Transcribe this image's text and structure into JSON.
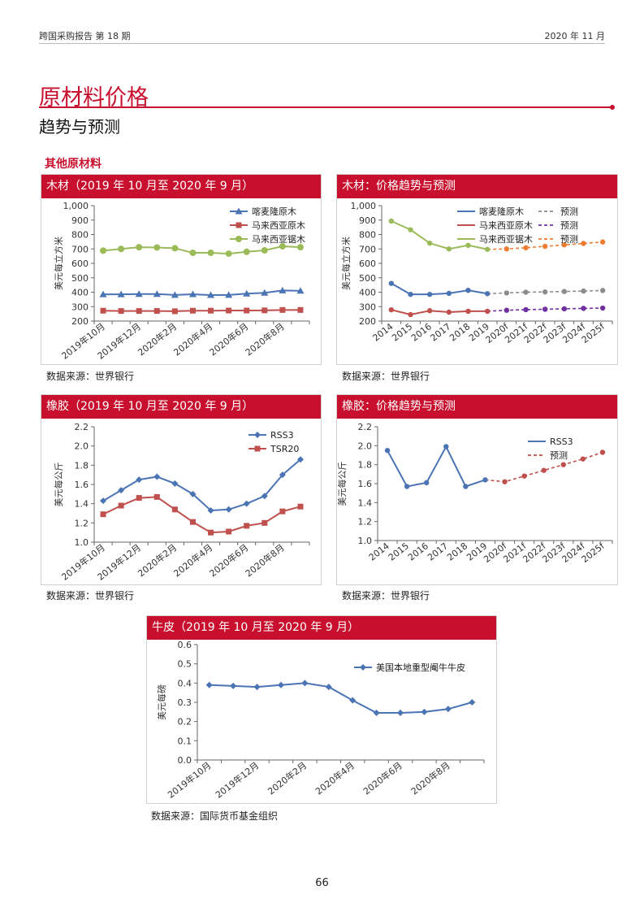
{
  "header": {
    "left": "跨国采购报告 第 18 期",
    "right": "2020 年 11 月"
  },
  "page": {
    "title": "原材料价格",
    "subtitle": "趋势与预测",
    "section": "其他原材料",
    "page_number": "66"
  },
  "colors": {
    "brand_red": "#c8102e",
    "blue": "#4a74b4",
    "red": "#c0504d",
    "green": "#9bbb59",
    "gray": "#8c8c8c",
    "purple": "#7030a0",
    "orange": "#ed7d31"
  },
  "charts": {
    "wood_hist": {
      "head": "木材（2019 年 10 月至 2020 年 9 月）",
      "source": "数据来源：世界银行"
    },
    "wood_fc": {
      "head": "木材：价格趋势与预测",
      "source": "数据来源：世界银行"
    },
    "rubber_hist": {
      "head": "橡胶（2019 年 10 月至 2020 年 9 月）",
      "source": "数据来源：世界银行"
    },
    "rubber_fc": {
      "head": "橡胶：价格趋势与预测",
      "source": "数据来源：世界银行"
    },
    "hide_hist": {
      "head": "牛皮（2019 年 10 月至 2020 年 9 月）",
      "source": "数据来源：国际货币基金组织"
    }
  },
  "chart_data": [
    {
      "id": "wood_hist",
      "type": "line",
      "ylabel": "美元每立方米",
      "ylim": [
        200,
        1000
      ],
      "yticks": [
        "200",
        "300",
        "400",
        "500",
        "600",
        "700",
        "800",
        "900",
        "1,000"
      ],
      "x": [
        "2019年10月",
        "2019年11月",
        "2019年12月",
        "2020年1月",
        "2020年2月",
        "2020年3月",
        "2020年4月",
        "2020年5月",
        "2020年6月",
        "2020年7月",
        "2020年8月",
        "2020年9月"
      ],
      "xtick_labels": [
        "2019年10月",
        "2019年12月",
        "2020年2月",
        "2020年4月",
        "2020年6月",
        "2020年8月"
      ],
      "legend": "top-right",
      "series": [
        {
          "name": "喀麦隆原木",
          "color": "#4a74b4",
          "marker": "triangle",
          "values": [
            385,
            385,
            387,
            387,
            381,
            386,
            380,
            381,
            390,
            396,
            412,
            410
          ]
        },
        {
          "name": "马来西亚原木",
          "color": "#c0504d",
          "marker": "square",
          "values": [
            272,
            270,
            270,
            270,
            268,
            272,
            272,
            273,
            273,
            274,
            277,
            277
          ]
        },
        {
          "name": "马来西亚锯木",
          "color": "#9bbb59",
          "marker": "circle",
          "values": [
            688,
            700,
            712,
            710,
            705,
            673,
            673,
            667,
            680,
            690,
            718,
            712
          ]
        }
      ]
    },
    {
      "id": "wood_fc",
      "type": "line",
      "ylabel": "美元每立方米",
      "ylim": [
        200,
        1000
      ],
      "yticks": [
        "200",
        "300",
        "400",
        "500",
        "600",
        "700",
        "800",
        "900",
        "1,000"
      ],
      "x": [
        "2014",
        "2015",
        "2016",
        "2017",
        "2018",
        "2019",
        "2020f",
        "2021f",
        "2022f",
        "2023f",
        "2024f",
        "2025f"
      ],
      "legend": "top",
      "legend_dash_label": "预测",
      "series": [
        {
          "name": "喀麦隆原木",
          "color": "#4a74b4",
          "forecast_color": "#8c8c8c",
          "values": [
            461,
            385,
            385,
            392,
            413,
            390,
            395,
            400,
            402,
            405,
            408,
            412
          ]
        },
        {
          "name": "马来西亚原木",
          "color": "#c0504d",
          "forecast_color": "#7030a0",
          "values": [
            278,
            245,
            272,
            262,
            268,
            268,
            275,
            279,
            282,
            285,
            288,
            290
          ]
        },
        {
          "name": "马来西亚锯木",
          "color": "#9bbb59",
          "forecast_color": "#ed7d31",
          "values": [
            893,
            833,
            740,
            700,
            725,
            697,
            700,
            708,
            718,
            728,
            738,
            748
          ]
        }
      ]
    },
    {
      "id": "rubber_hist",
      "type": "line",
      "ylabel": "美元每公斤",
      "ylim": [
        1.0,
        2.2
      ],
      "yticks": [
        "1.0",
        "1.2",
        "1.4",
        "1.6",
        "1.8",
        "2.0",
        "2.2"
      ],
      "x": [
        "2019年10月",
        "2019年11月",
        "2019年12月",
        "2020年1月",
        "2020年2月",
        "2020年3月",
        "2020年4月",
        "2020年5月",
        "2020年6月",
        "2020年7月",
        "2020年8月",
        "2020年9月"
      ],
      "xtick_labels": [
        "2019年10月",
        "2019年12月",
        "2020年2月",
        "2020年4月",
        "2020年6月",
        "2020年8月"
      ],
      "legend": "top-right",
      "series": [
        {
          "name": "RSS3",
          "color": "#4a74b4",
          "marker": "diamond",
          "values": [
            1.43,
            1.54,
            1.65,
            1.68,
            1.61,
            1.5,
            1.33,
            1.34,
            1.4,
            1.48,
            1.7,
            1.86
          ]
        },
        {
          "name": "TSR20",
          "color": "#c0504d",
          "marker": "square",
          "values": [
            1.29,
            1.38,
            1.46,
            1.47,
            1.34,
            1.21,
            1.1,
            1.11,
            1.17,
            1.2,
            1.32,
            1.37
          ]
        }
      ]
    },
    {
      "id": "rubber_fc",
      "type": "line",
      "ylabel": "美元每公斤",
      "ylim": [
        1.0,
        2.2
      ],
      "yticks": [
        "1.0",
        "1.2",
        "1.4",
        "1.6",
        "1.8",
        "2.0",
        "2.2"
      ],
      "x": [
        "2014",
        "2015",
        "2016",
        "2017",
        "2018",
        "2019",
        "2020f",
        "2021f",
        "2022f",
        "2023f",
        "2024f",
        "2025f"
      ],
      "legend": "top-right",
      "legend_dash_label": "预测",
      "series": [
        {
          "name": "RSS3",
          "color": "#4a74b4",
          "forecast_color": "#c0504d",
          "values": [
            1.95,
            1.57,
            1.61,
            1.99,
            1.57,
            1.64,
            1.62,
            1.68,
            1.74,
            1.8,
            1.86,
            1.93
          ]
        }
      ]
    },
    {
      "id": "hide_hist",
      "type": "line",
      "ylabel": "美元每磅",
      "ylim": [
        0.0,
        0.6
      ],
      "yticks": [
        "0.0",
        "0.1",
        "0.2",
        "0.3",
        "0.4",
        "0.5",
        "0.6"
      ],
      "x": [
        "2019年10月",
        "2019年11月",
        "2019年12月",
        "2020年1月",
        "2020年2月",
        "2020年3月",
        "2020年4月",
        "2020年5月",
        "2020年6月",
        "2020年7月",
        "2020年8月",
        "2020年9月"
      ],
      "xtick_labels": [
        "2019年10月",
        "2019年12月",
        "2020年2月",
        "2020年4月",
        "2020年6月",
        "2020年8月"
      ],
      "legend": "top-right",
      "series": [
        {
          "name": "美国本地重型阉牛牛皮",
          "color": "#4a74b4",
          "marker": "diamond",
          "values": [
            0.39,
            0.385,
            0.38,
            0.39,
            0.4,
            0.38,
            0.31,
            0.245,
            0.245,
            0.25,
            0.265,
            0.3
          ]
        }
      ]
    }
  ]
}
